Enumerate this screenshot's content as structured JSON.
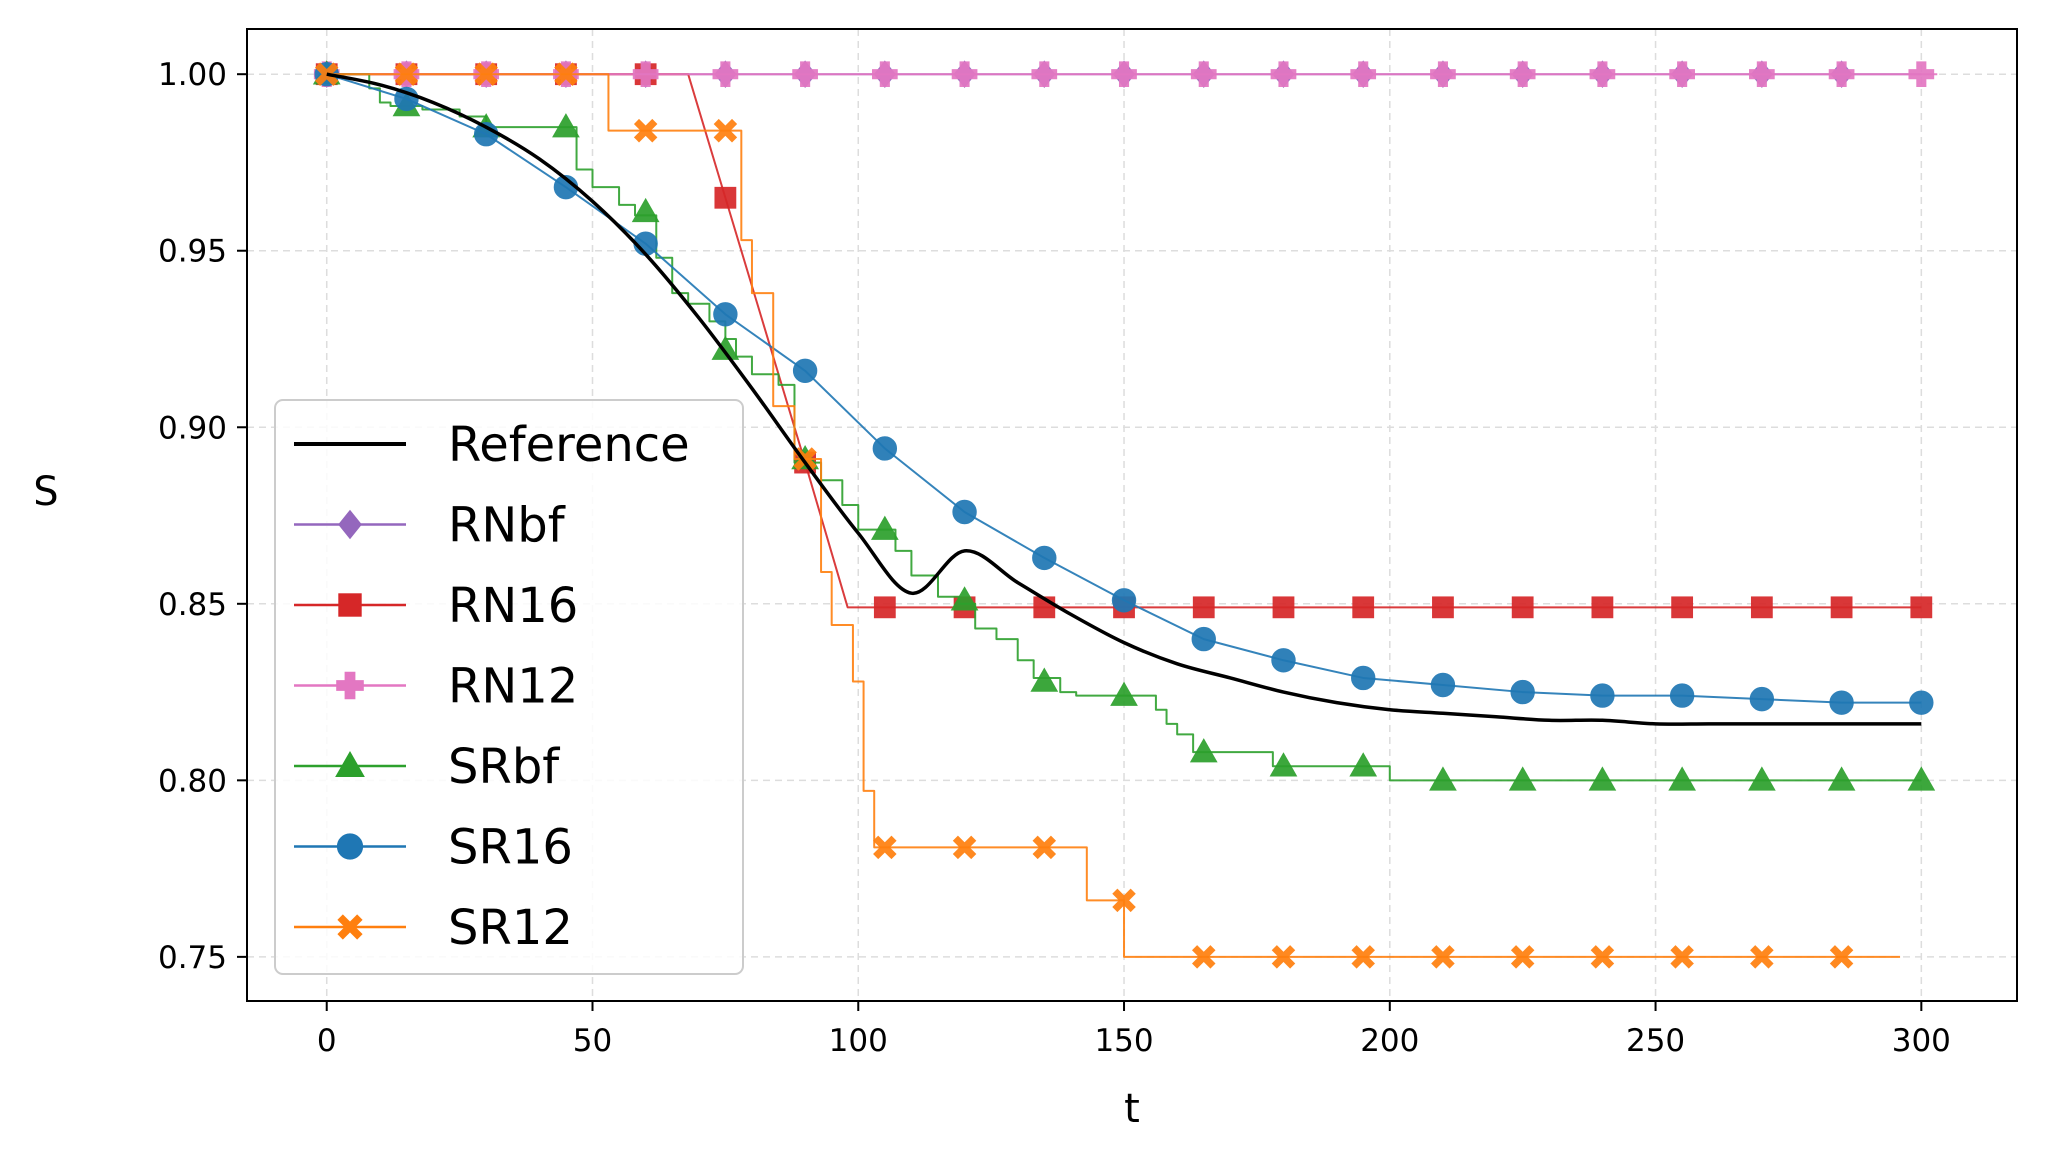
{
  "chart_data": {
    "type": "line",
    "title": "",
    "xlabel": "t",
    "ylabel": "S",
    "xlim": [
      -15,
      318
    ],
    "ylim": [
      0.7375,
      1.0128
    ],
    "xticks": [
      0,
      50,
      100,
      150,
      200,
      250,
      300
    ],
    "xtick_labels": [
      "0",
      "50",
      "100",
      "150",
      "200",
      "250",
      "300"
    ],
    "yticks": [
      0.75,
      0.8,
      0.85,
      0.9,
      0.95,
      1.0
    ],
    "ytick_labels": [
      "0.75",
      "0.80",
      "0.85",
      "0.90",
      "0.95",
      "1.00"
    ],
    "grid": true,
    "legend_position": "lower-left",
    "series": [
      {
        "name": "Reference",
        "color": "#000000",
        "marker": "none",
        "style": "smooth",
        "x": [
          0,
          10,
          20,
          30,
          40,
          50,
          60,
          70,
          80,
          90,
          100,
          110,
          120,
          130,
          140,
          150,
          160,
          170,
          180,
          190,
          200,
          210,
          220,
          230,
          240,
          250,
          260,
          270,
          280,
          290,
          300
        ],
        "y": [
          1.0,
          0.997,
          0.992,
          0.985,
          0.976,
          0.964,
          0.949,
          0.931,
          0.911,
          0.89,
          0.87,
          0.853,
          0.865,
          0.856,
          0.847,
          0.839,
          0.833,
          0.829,
          0.825,
          0.822,
          0.82,
          0.819,
          0.818,
          0.817,
          0.817,
          0.816,
          0.816,
          0.816,
          0.816,
          0.816,
          0.816
        ]
      },
      {
        "name": "RNbf",
        "color": "#9467bd",
        "marker": "diamond",
        "style": "step",
        "x": [
          0,
          300
        ],
        "y": [
          1.0,
          1.0
        ],
        "marker_x": [
          0,
          15,
          30,
          45,
          60,
          75,
          90,
          105,
          120,
          135,
          150,
          165,
          180,
          195,
          210,
          225,
          240,
          255,
          270,
          285
        ],
        "marker_y": [
          1.0,
          1.0,
          1.0,
          1.0,
          1.0,
          1.0,
          1.0,
          1.0,
          1.0,
          1.0,
          1.0,
          1.0,
          1.0,
          1.0,
          1.0,
          1.0,
          1.0,
          1.0,
          1.0,
          1.0
        ]
      },
      {
        "name": "RN16",
        "color": "#d62728",
        "marker": "square",
        "style": "line",
        "x": [
          0,
          68,
          75,
          90,
          98,
          300
        ],
        "y": [
          1.0,
          1.0,
          0.965,
          0.89,
          0.849,
          0.849
        ],
        "marker_x": [
          0,
          15,
          30,
          45,
          60,
          75,
          90,
          105,
          120,
          135,
          150,
          165,
          180,
          195,
          210,
          225,
          240,
          255,
          270,
          285,
          300
        ],
        "marker_y": [
          1.0,
          1.0,
          1.0,
          1.0,
          1.0,
          0.965,
          0.89,
          0.849,
          0.849,
          0.849,
          0.849,
          0.849,
          0.849,
          0.849,
          0.849,
          0.849,
          0.849,
          0.849,
          0.849,
          0.849,
          0.849
        ]
      },
      {
        "name": "RN12",
        "color": "#e377c2",
        "marker": "plus",
        "style": "step",
        "x": [
          0,
          303
        ],
        "y": [
          1.0,
          1.0
        ],
        "marker_x": [
          0,
          15,
          30,
          45,
          60,
          75,
          90,
          105,
          120,
          135,
          150,
          165,
          180,
          195,
          210,
          225,
          240,
          255,
          270,
          285,
          300
        ],
        "marker_y": [
          1.0,
          1.0,
          1.0,
          1.0,
          1.0,
          1.0,
          1.0,
          1.0,
          1.0,
          1.0,
          1.0,
          1.0,
          1.0,
          1.0,
          1.0,
          1.0,
          1.0,
          1.0,
          1.0,
          1.0,
          1.0
        ]
      },
      {
        "name": "SRbf",
        "color": "#2ca02c",
        "marker": "triangle",
        "style": "step",
        "x": [
          0,
          8,
          10,
          12,
          18,
          25,
          30,
          40,
          47,
          50,
          55,
          58,
          62,
          65,
          68,
          72,
          75,
          77,
          80,
          85,
          88,
          93,
          97,
          100,
          107,
          110,
          115,
          119,
          122,
          126,
          130,
          133,
          138,
          141,
          145,
          150,
          156,
          158,
          160,
          163,
          172,
          178,
          184,
          195,
          200,
          210,
          300
        ],
        "y": [
          1.0,
          0.996,
          0.992,
          0.991,
          0.99,
          0.988,
          0.985,
          0.985,
          0.973,
          0.968,
          0.963,
          0.96,
          0.948,
          0.938,
          0.935,
          0.93,
          0.925,
          0.92,
          0.915,
          0.912,
          0.89,
          0.885,
          0.878,
          0.871,
          0.865,
          0.858,
          0.852,
          0.85,
          0.843,
          0.84,
          0.834,
          0.829,
          0.825,
          0.824,
          0.824,
          0.824,
          0.82,
          0.816,
          0.813,
          0.808,
          0.808,
          0.804,
          0.804,
          0.804,
          0.8,
          0.8,
          0.8
        ],
        "marker_x": [
          0,
          15,
          30,
          45,
          60,
          75,
          90,
          105,
          120,
          135,
          150,
          165,
          180,
          195,
          210,
          225,
          240,
          255,
          270,
          285,
          300
        ],
        "marker_y": [
          1.0,
          0.991,
          0.985,
          0.985,
          0.961,
          0.922,
          0.891,
          0.871,
          0.851,
          0.828,
          0.824,
          0.808,
          0.804,
          0.804,
          0.8,
          0.8,
          0.8,
          0.8,
          0.8,
          0.8,
          0.8
        ]
      },
      {
        "name": "SR16",
        "color": "#1f77b4",
        "marker": "circle",
        "style": "line",
        "x": [
          0,
          15,
          30,
          45,
          60,
          75,
          90,
          105,
          120,
          135,
          150,
          165,
          180,
          195,
          210,
          225,
          240,
          255,
          270,
          285,
          300
        ],
        "y": [
          1.0,
          0.993,
          0.983,
          0.968,
          0.952,
          0.932,
          0.916,
          0.894,
          0.876,
          0.863,
          0.851,
          0.84,
          0.834,
          0.829,
          0.827,
          0.825,
          0.824,
          0.824,
          0.823,
          0.822,
          0.822
        ],
        "marker_x": [
          0,
          15,
          30,
          45,
          60,
          75,
          90,
          105,
          120,
          135,
          150,
          165,
          180,
          195,
          210,
          225,
          240,
          255,
          270,
          285,
          300
        ],
        "marker_y": [
          1.0,
          0.993,
          0.983,
          0.968,
          0.952,
          0.932,
          0.916,
          0.894,
          0.876,
          0.863,
          0.851,
          0.84,
          0.834,
          0.829,
          0.827,
          0.825,
          0.824,
          0.824,
          0.823,
          0.822,
          0.822
        ]
      },
      {
        "name": "SR12",
        "color": "#ff7f0e",
        "marker": "x",
        "style": "step",
        "x": [
          0,
          53,
          76,
          78,
          80,
          84,
          88,
          93,
          95,
          99,
          101,
          103,
          120,
          143,
          150,
          296
        ],
        "y": [
          1.0,
          0.984,
          0.984,
          0.953,
          0.938,
          0.906,
          0.891,
          0.859,
          0.844,
          0.828,
          0.797,
          0.781,
          0.781,
          0.766,
          0.75,
          0.75
        ],
        "marker_x": [
          0,
          15,
          30,
          45,
          60,
          75,
          90,
          105,
          120,
          135,
          150,
          165,
          180,
          195,
          210,
          225,
          240,
          255,
          270,
          285
        ],
        "marker_y": [
          1.0,
          1.0,
          1.0,
          1.0,
          0.984,
          0.984,
          0.891,
          0.781,
          0.781,
          0.781,
          0.766,
          0.75,
          0.75,
          0.75,
          0.75,
          0.75,
          0.75,
          0.75,
          0.75,
          0.75
        ]
      }
    ]
  }
}
